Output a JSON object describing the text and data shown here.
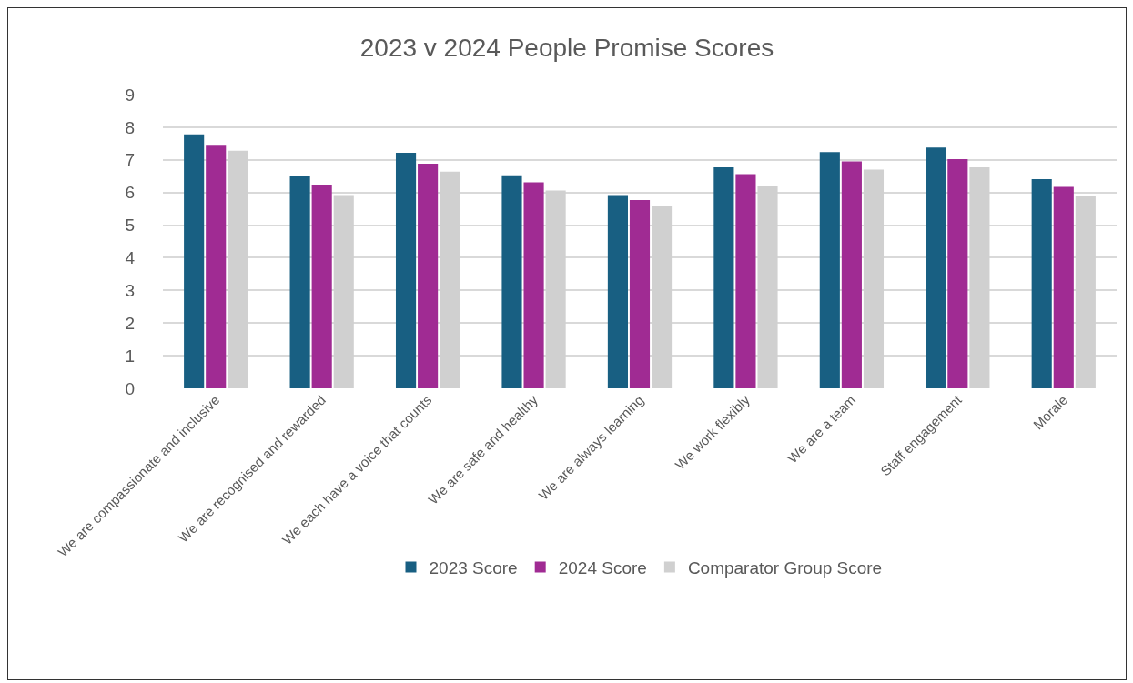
{
  "chart_data": {
    "type": "bar",
    "title": "2023 v 2024 People Promise Scores",
    "categories": [
      "We are compassionate and inclusive",
      "We are recognised and rewarded",
      "We each have a voice that counts",
      "We are safe and healthy",
      "We are always learning",
      "We work flexibly",
      "We are a team",
      "Staff engagement",
      "Morale"
    ],
    "series": [
      {
        "name": "2023 Score",
        "color": "#185f82",
        "values": [
          7.78,
          6.49,
          7.22,
          6.53,
          5.92,
          6.77,
          7.24,
          7.38,
          6.41
        ]
      },
      {
        "name": "2024 Score",
        "color": "#a02b93",
        "values": [
          7.46,
          6.24,
          6.88,
          6.31,
          5.77,
          6.56,
          6.95,
          7.02,
          6.17
        ]
      },
      {
        "name": "Comparator Group Score",
        "color": "#d0d0d0",
        "values": [
          7.28,
          5.92,
          6.64,
          6.06,
          5.59,
          6.21,
          6.7,
          6.77,
          5.88
        ]
      }
    ],
    "ylim": [
      0,
      9
    ],
    "yticks": [
      0,
      1,
      2,
      3,
      4,
      5,
      6,
      7,
      8,
      9
    ],
    "grid": "y",
    "legend": "bottom"
  }
}
